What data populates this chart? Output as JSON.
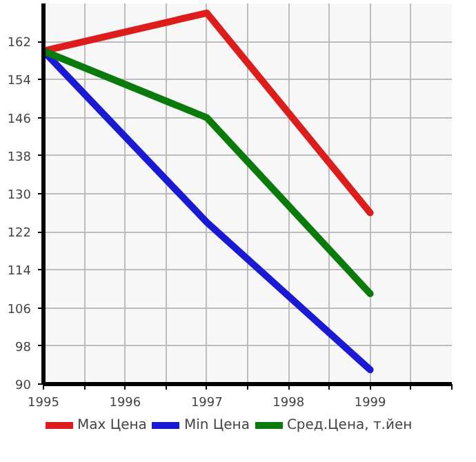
{
  "chart_data": {
    "type": "line",
    "x": [
      1995,
      1997,
      1999
    ],
    "series": [
      {
        "name": "Max Цена",
        "color": "#dd1c1c",
        "values": [
          160,
          168,
          126
        ]
      },
      {
        "name": "Min Цена",
        "color": "#1a1ad4",
        "values": [
          160,
          124,
          93
        ]
      },
      {
        "name": "Сред.Цена, т.йен",
        "color": "#0a7a0a",
        "values": [
          160,
          146,
          109
        ]
      }
    ],
    "xlim": [
      1995,
      2000
    ],
    "xticks": [
      1995,
      {
        "value": 1995.5,
        "label": null
      },
      1996,
      {
        "value": 1996.5,
        "label": null
      },
      1997,
      {
        "value": 1997.5,
        "label": null
      },
      1998,
      {
        "value": 1998.5,
        "label": null
      },
      1999,
      {
        "value": 1999.5,
        "label": null
      },
      {
        "value": 2000,
        "label": null
      }
    ],
    "ylim": [
      90,
      170
    ],
    "yticks": [
      90,
      98,
      106,
      114,
      122,
      130,
      138,
      146,
      154,
      162
    ],
    "grid": true,
    "legend": "bottom",
    "marker": "none",
    "line_style": "solid"
  }
}
